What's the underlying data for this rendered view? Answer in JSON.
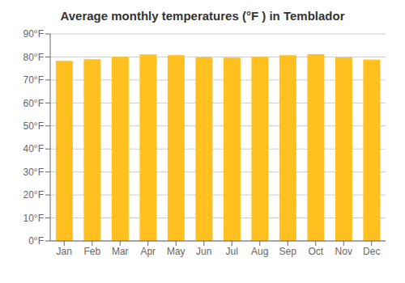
{
  "chart_data": {
    "type": "bar",
    "title": "Average monthly temperatures (°F ) in Temblador",
    "categories": [
      "Jan",
      "Feb",
      "Mar",
      "Apr",
      "May",
      "Jun",
      "Jul",
      "Aug",
      "Sep",
      "Oct",
      "Nov",
      "Dec"
    ],
    "values": [
      78.3,
      79.0,
      80.1,
      81.1,
      80.8,
      79.9,
      79.7,
      80.1,
      80.8,
      81.2,
      79.8,
      78.8
    ],
    "color": "#FFC020",
    "ylim": [
      0,
      90
    ],
    "yticks": [
      {
        "value": 0,
        "label": "0°F"
      },
      {
        "value": 10,
        "label": "10°F"
      },
      {
        "value": 20,
        "label": "20°F"
      },
      {
        "value": 30,
        "label": "30°F"
      },
      {
        "value": 40,
        "label": "40°F"
      },
      {
        "value": 50,
        "label": "50°F"
      },
      {
        "value": 60,
        "label": "60°F"
      },
      {
        "value": 70,
        "label": "70°F"
      },
      {
        "value": 80,
        "label": "80°F"
      },
      {
        "value": 90,
        "label": "90°F"
      }
    ],
    "grid": true
  }
}
